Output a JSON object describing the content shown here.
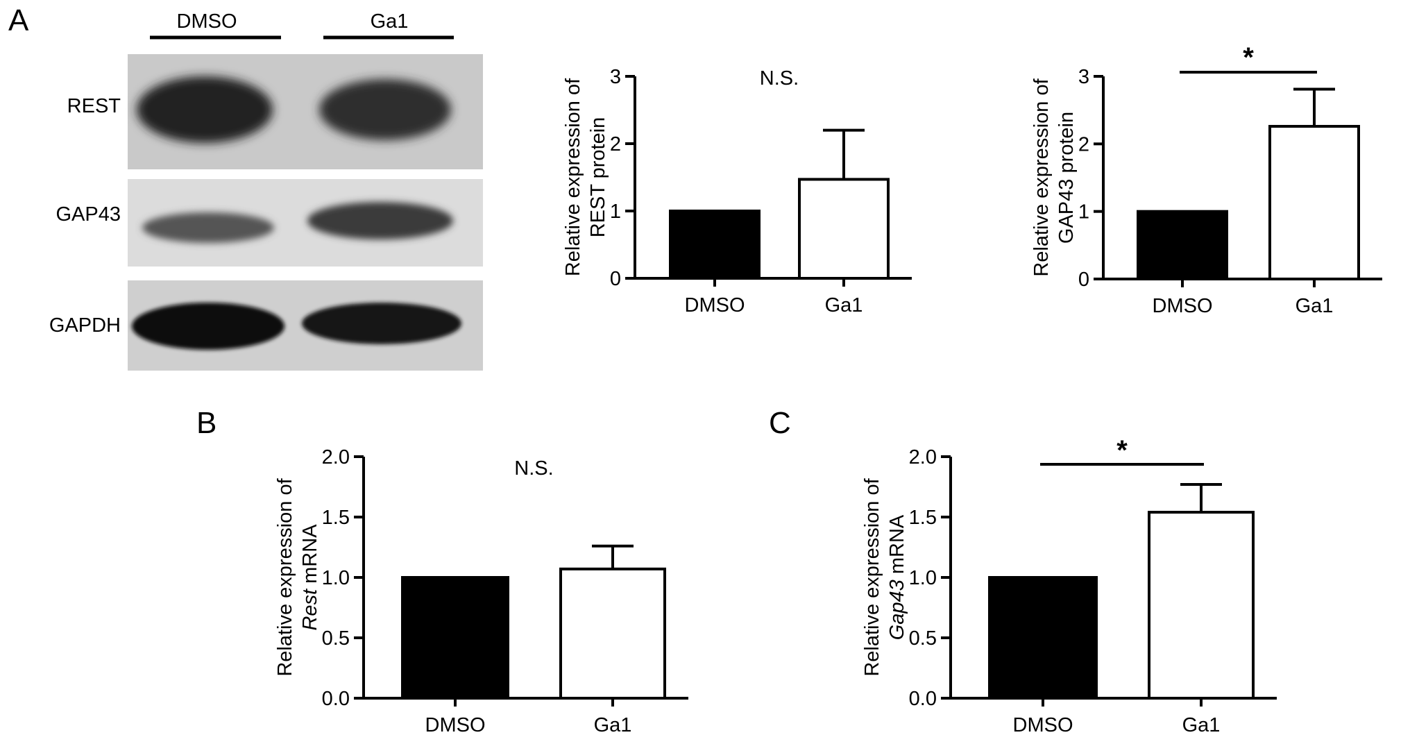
{
  "panels": [
    {
      "id": "A",
      "letter": "A"
    },
    {
      "id": "B",
      "letter": "B"
    },
    {
      "id": "C",
      "letter": "C"
    }
  ],
  "western_blot": {
    "lanes": [
      "DMSO",
      "Ga1"
    ],
    "bands": [
      "REST",
      "GAP43",
      "GAPDH"
    ]
  },
  "colors": {
    "dmso_fill": "#000000",
    "ga1_fill": "#ffffff",
    "stroke": "#000000"
  },
  "chart_data": [
    {
      "id": "rest-protein",
      "type": "bar",
      "categories": [
        "DMSO",
        "Ga1"
      ],
      "values": [
        1.0,
        1.47
      ],
      "error": [
        0,
        0.73
      ],
      "ylabel_line1": "Relative expression of",
      "ylabel_line2": "REST protein",
      "ylim": [
        0,
        3
      ],
      "yticks": [
        0,
        1,
        2,
        3
      ],
      "ytick_labels": [
        "0",
        "1",
        "2",
        "3"
      ],
      "significance": "N.S.",
      "significance_type": "text"
    },
    {
      "id": "gap43-protein",
      "type": "bar",
      "categories": [
        "DMSO",
        "Ga1"
      ],
      "values": [
        1.0,
        2.26
      ],
      "error": [
        0,
        0.55
      ],
      "ylabel_line1": "Relative expression of",
      "ylabel_line2": "GAP43 protein",
      "ylim": [
        0,
        3
      ],
      "yticks": [
        0,
        1,
        2,
        3
      ],
      "ytick_labels": [
        "0",
        "1",
        "2",
        "3"
      ],
      "significance": "*",
      "significance_type": "bracket"
    },
    {
      "id": "rest-mrna",
      "type": "bar",
      "categories": [
        "DMSO",
        "Ga1"
      ],
      "values": [
        1.0,
        1.07
      ],
      "error": [
        0,
        0.19
      ],
      "ylabel_line1": "Relative expression of",
      "ylabel_line2_italic": "Rest",
      "ylabel_line2_rest": " mRNA",
      "ylim": [
        0,
        2.0
      ],
      "yticks": [
        0,
        0.5,
        1.0,
        1.5,
        2.0
      ],
      "ytick_labels": [
        "0.0",
        "0.5",
        "1.0",
        "1.5",
        "2.0"
      ],
      "significance": "N.S.",
      "significance_type": "text"
    },
    {
      "id": "gap43-mrna",
      "type": "bar",
      "categories": [
        "DMSO",
        "Ga1"
      ],
      "values": [
        1.0,
        1.54
      ],
      "error": [
        0,
        0.23
      ],
      "ylabel_line1": "Relative expression of",
      "ylabel_line2_italic": "Gap43",
      "ylabel_line2_rest": " mRNA",
      "ylim": [
        0,
        2.0
      ],
      "yticks": [
        0,
        0.5,
        1.0,
        1.5,
        2.0
      ],
      "ytick_labels": [
        "0.0",
        "0.5",
        "1.0",
        "1.5",
        "2.0"
      ],
      "significance": "*",
      "significance_type": "bracket"
    }
  ]
}
